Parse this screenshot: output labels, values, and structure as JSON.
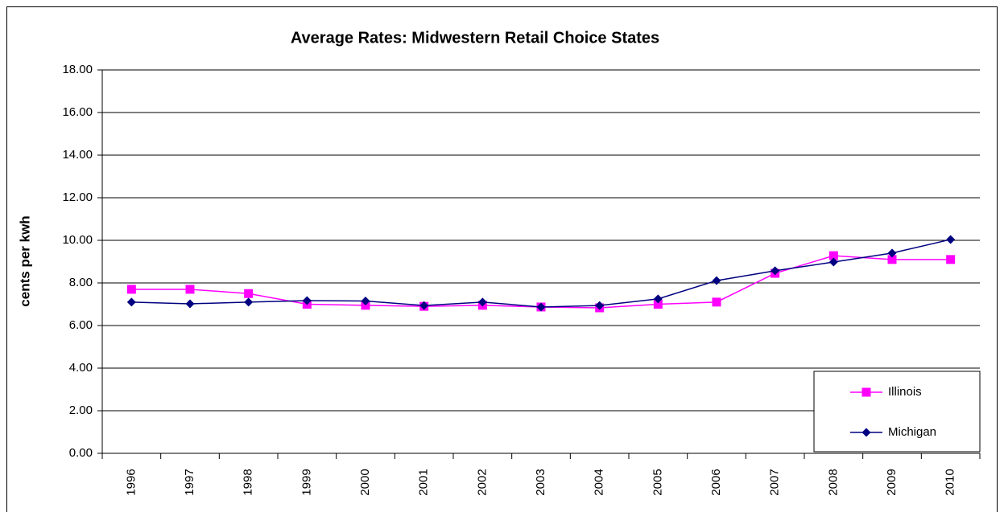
{
  "chart_data": {
    "type": "line",
    "title": "Average Rates:  Midwestern Retail Choice States",
    "y_label": "cents per kwh",
    "categories": [
      "1996",
      "1997",
      "1998",
      "1999",
      "2000",
      "2001",
      "2002",
      "2003",
      "2004",
      "2005",
      "2006",
      "2007",
      "2008",
      "2009",
      "2010"
    ],
    "series": [
      {
        "name": "Illinois",
        "color": "#ff00ff",
        "marker": "square",
        "values": [
          7.7,
          7.7,
          7.5,
          7.0,
          6.95,
          6.9,
          6.95,
          6.87,
          6.83,
          7.0,
          7.1,
          8.45,
          9.28,
          9.1,
          9.1
        ]
      },
      {
        "name": "Michigan",
        "color": "#000080",
        "marker": "diamond",
        "values": [
          7.1,
          7.02,
          7.1,
          7.17,
          7.15,
          6.94,
          7.1,
          6.87,
          6.94,
          7.25,
          8.11,
          8.57,
          8.98,
          9.4,
          10.04
        ]
      }
    ],
    "ylim": [
      0,
      18
    ],
    "yticks": [
      {
        "value": 0,
        "label": "0.00"
      },
      {
        "value": 2,
        "label": "2.00"
      },
      {
        "value": 4,
        "label": "4.00"
      },
      {
        "value": 6,
        "label": "6.00"
      },
      {
        "value": 8,
        "label": "8.00"
      },
      {
        "value": 10,
        "label": "10.00"
      },
      {
        "value": 12,
        "label": "12.00"
      },
      {
        "value": 14,
        "label": "14.00"
      },
      {
        "value": 16,
        "label": "16.00"
      },
      {
        "value": 18,
        "label": "18.00"
      }
    ],
    "grid": true,
    "legend": "bottom-right"
  }
}
